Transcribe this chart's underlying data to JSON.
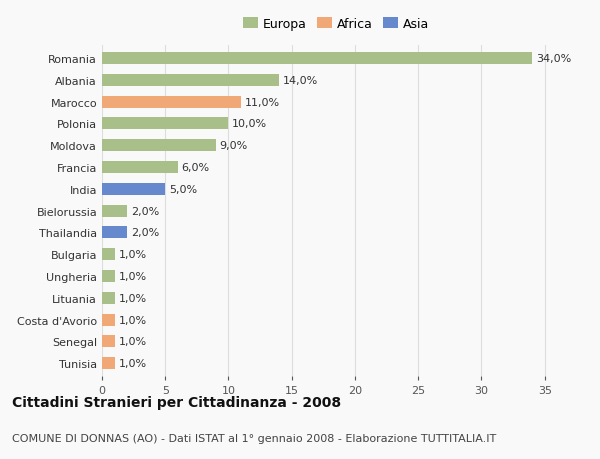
{
  "categories": [
    "Romania",
    "Albania",
    "Marocco",
    "Polonia",
    "Moldova",
    "Francia",
    "India",
    "Bielorussia",
    "Thailandia",
    "Bulgaria",
    "Ungheria",
    "Lituania",
    "Costa d'Avorio",
    "Senegal",
    "Tunisia"
  ],
  "values": [
    34.0,
    14.0,
    11.0,
    10.0,
    9.0,
    6.0,
    5.0,
    2.0,
    2.0,
    1.0,
    1.0,
    1.0,
    1.0,
    1.0,
    1.0
  ],
  "continents": [
    "Europa",
    "Europa",
    "Africa",
    "Europa",
    "Europa",
    "Europa",
    "Asia",
    "Europa",
    "Asia",
    "Europa",
    "Europa",
    "Europa",
    "Africa",
    "Africa",
    "Africa"
  ],
  "colors": {
    "Europa": "#a8bf8a",
    "Africa": "#f0a877",
    "Asia": "#6688cc"
  },
  "title": "Cittadini Stranieri per Cittadinanza - 2008",
  "subtitle": "COMUNE DI DONNAS (AO) - Dati ISTAT al 1° gennaio 2008 - Elaborazione TUTTITALIA.IT",
  "xlim": [
    0,
    37
  ],
  "xticks": [
    0,
    5,
    10,
    15,
    20,
    25,
    30,
    35
  ],
  "background_color": "#f9f9f9",
  "grid_color": "#dddddd",
  "bar_height": 0.55,
  "label_fontsize": 8,
  "title_fontsize": 10,
  "subtitle_fontsize": 8
}
